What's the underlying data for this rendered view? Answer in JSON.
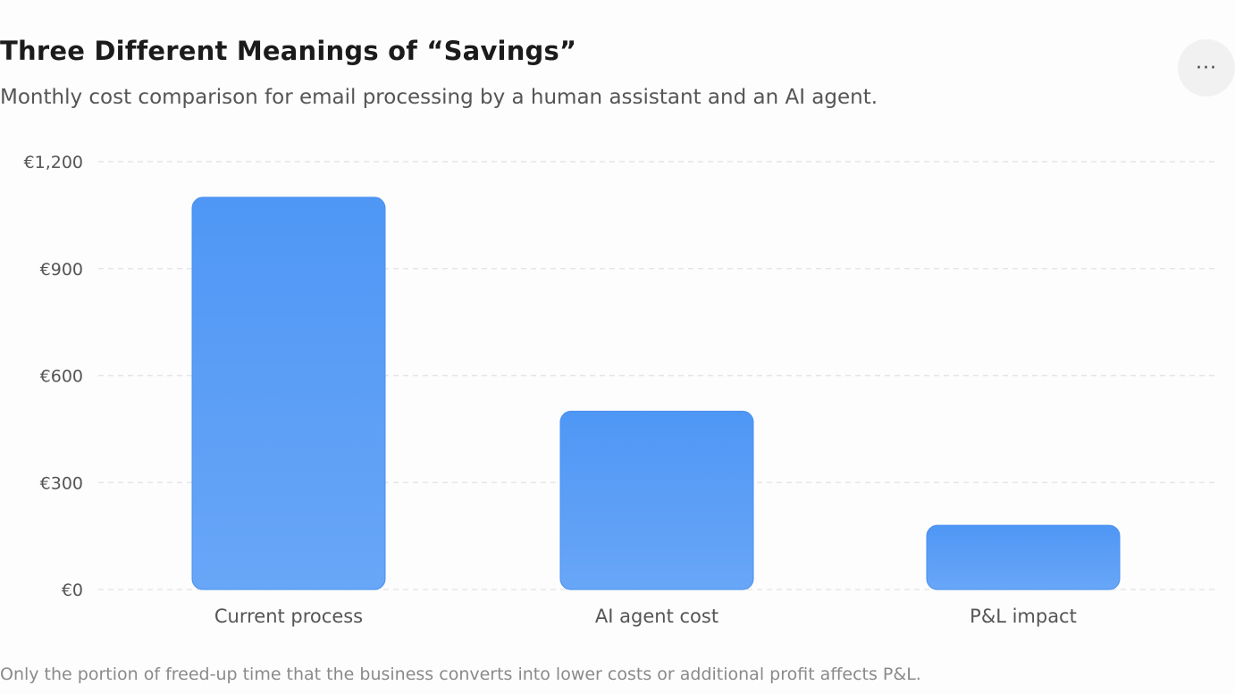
{
  "header": {
    "title": "Three Different Meanings of “Savings”",
    "subtitle": "Monthly cost comparison for email processing by a human assistant and an AI agent.",
    "menu_label": "···"
  },
  "footnote": "Only the portion of freed-up time that the business converts into lower costs or additional profit affects P&L.",
  "colors": {
    "bar_top": "#4f97f5",
    "bar_bottom": "#68a6f7",
    "grid": "#e6e6e6",
    "tick_text": "#555555"
  },
  "chart_data": {
    "type": "bar",
    "categories": [
      "Current process",
      "AI agent cost",
      "P&L impact"
    ],
    "values": [
      1100,
      500,
      180
    ],
    "ylim": [
      0,
      1200
    ],
    "yticks": [
      0,
      300,
      600,
      900,
      1200
    ],
    "ytick_labels": [
      "€0",
      "€300",
      "€600",
      "€900",
      "€1,200"
    ],
    "grid": true,
    "grid_style": "dashed"
  }
}
